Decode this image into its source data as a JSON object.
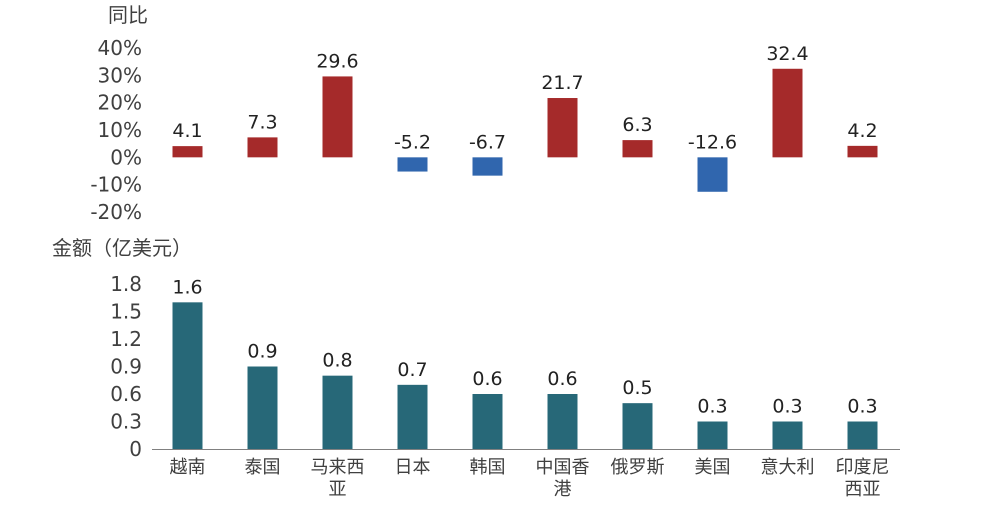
{
  "chart_data": [
    {
      "type": "bar",
      "ylabel": "同比",
      "categories": [
        "越南",
        "泰国",
        "马来西亚",
        "日本",
        "韩国",
        "中国香港",
        "俄罗斯",
        "美国",
        "意大利",
        "印度尼西亚"
      ],
      "values": [
        4.1,
        7.3,
        29.6,
        -5.2,
        -6.7,
        21.7,
        6.3,
        -12.6,
        32.4,
        4.2
      ],
      "value_labels": [
        "4.1",
        "7.3",
        "29.6",
        "-5.2",
        "-6.7",
        "21.7",
        "6.3",
        "-12.6",
        "32.4",
        "4.2"
      ],
      "ylim": [
        -20,
        40
      ],
      "yticks": [
        "40%",
        "30%",
        "20%",
        "10%",
        "0%",
        "-10%",
        "-20%"
      ],
      "colors": {
        "positive": "#A52A2A",
        "negative": "#3066AE"
      },
      "grid": false
    },
    {
      "type": "bar",
      "ylabel": "金额（亿美元）",
      "categories": [
        "越南",
        "泰国",
        "马来西亚",
        "日本",
        "韩国",
        "中国香港",
        "俄罗斯",
        "美国",
        "意大利",
        "印度尼西亚"
      ],
      "values": [
        1.6,
        0.9,
        0.8,
        0.7,
        0.6,
        0.6,
        0.5,
        0.3,
        0.3,
        0.3
      ],
      "value_labels": [
        "1.6",
        "0.9",
        "0.8",
        "0.7",
        "0.6",
        "0.6",
        "0.5",
        "0.3",
        "0.3",
        "0.3"
      ],
      "ylim": [
        0,
        1.8
      ],
      "yticks": [
        "1.8",
        "1.5",
        "1.2",
        "0.9",
        "0.6",
        "0.3",
        "0"
      ],
      "colors": {
        "bar": "#276878"
      },
      "grid": false
    }
  ]
}
